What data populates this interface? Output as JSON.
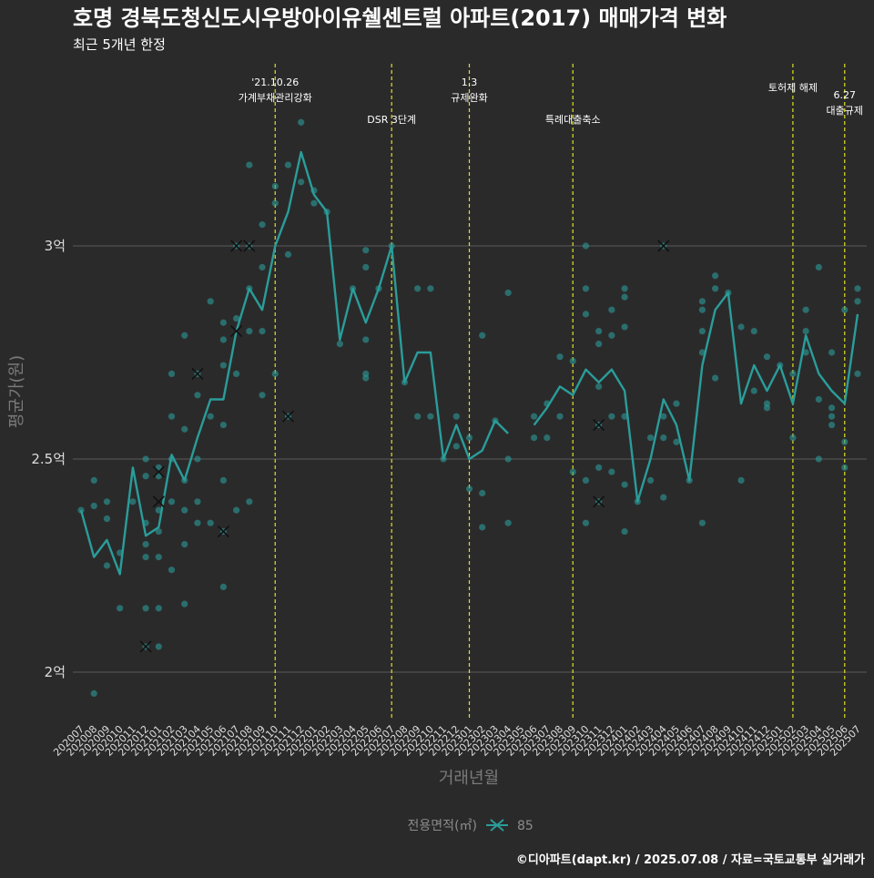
{
  "colors": {
    "background": "#2b2a2b",
    "series": "#2a9d9a",
    "point": "#2a9d9a",
    "event_line": "#e0e020",
    "grid": "#5a5a5a"
  },
  "chart_data": {
    "type": "line",
    "title": "호명 경북도청신도시우방아이유쉘센트럴 아파트(2017) 매매가격 변화",
    "subtitle": "최근 5개년 한정",
    "xlabel": "거래년월",
    "ylabel": "평균가(원)",
    "caption": "©디아파트(dapt.kr) / 2025.07.08 / 자료=국토교통부 실거래가",
    "legend": {
      "title": "전용면적(㎡)",
      "entries": [
        "85"
      ],
      "position": "bottom"
    },
    "grid": true,
    "y_unit": "억원",
    "ylim": [
      1.9,
      3.55
    ],
    "y_ticks": [
      2,
      2.5,
      3
    ],
    "y_tick_labels": [
      "2억",
      "2.5억",
      "3억"
    ],
    "categories": [
      "202007",
      "202008",
      "202009",
      "202010",
      "202011",
      "202012",
      "202101",
      "202102",
      "202103",
      "202104",
      "202105",
      "202106",
      "202107",
      "202108",
      "202109",
      "202110",
      "202111",
      "202112",
      "202201",
      "202202",
      "202203",
      "202204",
      "202205",
      "202206",
      "202207",
      "202208",
      "202209",
      "202210",
      "202211",
      "202212",
      "202301",
      "202302",
      "202303",
      "202304",
      "202305",
      "202306",
      "202307",
      "202308",
      "202309",
      "202310",
      "202311",
      "202312",
      "202401",
      "202402",
      "202403",
      "202404",
      "202405",
      "202406",
      "202407",
      "202408",
      "202409",
      "202410",
      "202411",
      "202412",
      "202501",
      "202502",
      "202503",
      "202504",
      "202505",
      "202506",
      "202507"
    ],
    "series": [
      {
        "name": "85",
        "values": [
          2.38,
          2.27,
          2.31,
          2.23,
          2.48,
          2.32,
          2.34,
          2.51,
          2.45,
          2.55,
          2.64,
          2.64,
          2.8,
          2.9,
          2.85,
          3.0,
          3.08,
          3.22,
          3.12,
          3.08,
          2.78,
          2.9,
          2.82,
          2.9,
          3.0,
          2.68,
          2.75,
          2.75,
          2.5,
          2.58,
          2.5,
          2.52,
          2.59,
          2.56,
          null,
          2.58,
          2.62,
          2.67,
          2.65,
          2.71,
          2.68,
          2.71,
          2.66,
          2.4,
          2.5,
          2.64,
          2.58,
          2.45,
          2.72,
          2.85,
          2.89,
          2.63,
          2.72,
          2.66,
          2.72,
          2.63,
          2.79,
          2.7,
          2.66,
          2.63,
          2.84
        ]
      }
    ],
    "transactions": [
      [
        0,
        2.38
      ],
      [
        1,
        2.45
      ],
      [
        1,
        2.39
      ],
      [
        1,
        1.95
      ],
      [
        2,
        2.4
      ],
      [
        2,
        2.36
      ],
      [
        2,
        2.25
      ],
      [
        3,
        2.28
      ],
      [
        3,
        2.15
      ],
      [
        4,
        2.4
      ],
      [
        5,
        2.5
      ],
      [
        5,
        2.46
      ],
      [
        5,
        2.35
      ],
      [
        5,
        2.3
      ],
      [
        5,
        2.27
      ],
      [
        5,
        2.15
      ],
      [
        5,
        2.06
      ],
      [
        6,
        2.48
      ],
      [
        6,
        2.46
      ],
      [
        6,
        2.38
      ],
      [
        6,
        2.33
      ],
      [
        6,
        2.27
      ],
      [
        6,
        2.15
      ],
      [
        6,
        2.06
      ],
      [
        7,
        2.7
      ],
      [
        7,
        2.6
      ],
      [
        7,
        2.5
      ],
      [
        7,
        2.4
      ],
      [
        7,
        2.24
      ],
      [
        8,
        2.79
      ],
      [
        8,
        2.57
      ],
      [
        8,
        2.45
      ],
      [
        8,
        2.38
      ],
      [
        8,
        2.3
      ],
      [
        8,
        2.16
      ],
      [
        9,
        2.7
      ],
      [
        9,
        2.65
      ],
      [
        9,
        2.5
      ],
      [
        9,
        2.4
      ],
      [
        9,
        2.35
      ],
      [
        10,
        2.87
      ],
      [
        10,
        2.6
      ],
      [
        10,
        2.35
      ],
      [
        11,
        2.82
      ],
      [
        11,
        2.78
      ],
      [
        11,
        2.72
      ],
      [
        11,
        2.58
      ],
      [
        11,
        2.45
      ],
      [
        11,
        2.33
      ],
      [
        11,
        2.2
      ],
      [
        12,
        3.0
      ],
      [
        12,
        2.83
      ],
      [
        12,
        2.7
      ],
      [
        12,
        2.38
      ],
      [
        13,
        3.19
      ],
      [
        13,
        3.0
      ],
      [
        13,
        2.9
      ],
      [
        13,
        2.8
      ],
      [
        13,
        2.4
      ],
      [
        14,
        3.05
      ],
      [
        14,
        2.95
      ],
      [
        14,
        2.8
      ],
      [
        14,
        2.65
      ],
      [
        15,
        3.14
      ],
      [
        15,
        3.1
      ],
      [
        15,
        2.7
      ],
      [
        16,
        3.19
      ],
      [
        16,
        2.98
      ],
      [
        16,
        2.6
      ],
      [
        17,
        3.29
      ],
      [
        17,
        3.15
      ],
      [
        18,
        3.13
      ],
      [
        18,
        3.1
      ],
      [
        19,
        3.08
      ],
      [
        20,
        2.77
      ],
      [
        21,
        2.9
      ],
      [
        22,
        2.99
      ],
      [
        22,
        2.95
      ],
      [
        22,
        2.78
      ],
      [
        22,
        2.7
      ],
      [
        22,
        2.69
      ],
      [
        23,
        2.9
      ],
      [
        24,
        3.0
      ],
      [
        25,
        2.68
      ],
      [
        26,
        2.9
      ],
      [
        26,
        2.6
      ],
      [
        27,
        2.9
      ],
      [
        27,
        2.6
      ],
      [
        28,
        2.5
      ],
      [
        29,
        2.6
      ],
      [
        29,
        2.53
      ],
      [
        30,
        2.55
      ],
      [
        30,
        2.43
      ],
      [
        31,
        2.79
      ],
      [
        31,
        2.42
      ],
      [
        31,
        2.34
      ],
      [
        32,
        2.59
      ],
      [
        33,
        2.89
      ],
      [
        33,
        2.5
      ],
      [
        33,
        2.35
      ],
      [
        35,
        2.6
      ],
      [
        35,
        2.55
      ],
      [
        36,
        2.63
      ],
      [
        36,
        2.55
      ],
      [
        37,
        2.74
      ],
      [
        37,
        2.6
      ],
      [
        38,
        2.73
      ],
      [
        38,
        2.47
      ],
      [
        39,
        3.0
      ],
      [
        39,
        2.9
      ],
      [
        39,
        2.84
      ],
      [
        39,
        2.45
      ],
      [
        39,
        2.35
      ],
      [
        40,
        2.8
      ],
      [
        40,
        2.77
      ],
      [
        40,
        2.67
      ],
      [
        40,
        2.58
      ],
      [
        40,
        2.48
      ],
      [
        40,
        2.4
      ],
      [
        41,
        2.85
      ],
      [
        41,
        2.79
      ],
      [
        41,
        2.6
      ],
      [
        41,
        2.47
      ],
      [
        42,
        2.9
      ],
      [
        42,
        2.88
      ],
      [
        42,
        2.81
      ],
      [
        42,
        2.6
      ],
      [
        42,
        2.44
      ],
      [
        42,
        2.33
      ],
      [
        43,
        2.4
      ],
      [
        44,
        2.55
      ],
      [
        44,
        2.45
      ],
      [
        45,
        3.0
      ],
      [
        45,
        2.6
      ],
      [
        45,
        2.55
      ],
      [
        45,
        2.41
      ],
      [
        46,
        2.63
      ],
      [
        46,
        2.54
      ],
      [
        47,
        2.45
      ],
      [
        48,
        2.87
      ],
      [
        48,
        2.85
      ],
      [
        48,
        2.8
      ],
      [
        48,
        2.75
      ],
      [
        48,
        2.35
      ],
      [
        49,
        2.93
      ],
      [
        49,
        2.9
      ],
      [
        49,
        2.69
      ],
      [
        50,
        2.89
      ],
      [
        51,
        2.81
      ],
      [
        51,
        2.45
      ],
      [
        52,
        2.8
      ],
      [
        52,
        2.66
      ],
      [
        53,
        2.74
      ],
      [
        53,
        2.63
      ],
      [
        53,
        2.62
      ],
      [
        54,
        2.72
      ],
      [
        55,
        2.7
      ],
      [
        55,
        2.55
      ],
      [
        56,
        2.85
      ],
      [
        56,
        2.8
      ],
      [
        56,
        2.75
      ],
      [
        57,
        2.95
      ],
      [
        57,
        2.64
      ],
      [
        57,
        2.5
      ],
      [
        58,
        2.75
      ],
      [
        58,
        2.62
      ],
      [
        58,
        2.6
      ],
      [
        58,
        2.58
      ],
      [
        59,
        2.85
      ],
      [
        59,
        2.54
      ],
      [
        59,
        2.48
      ],
      [
        60,
        2.9
      ],
      [
        60,
        2.87
      ],
      [
        60,
        2.7
      ]
    ],
    "cross_markers": [
      [
        5,
        2.06
      ],
      [
        6,
        2.47
      ],
      [
        6,
        2.4
      ],
      [
        9,
        2.7
      ],
      [
        11,
        2.33
      ],
      [
        12,
        3.0
      ],
      [
        12,
        2.8
      ],
      [
        13,
        3.0
      ],
      [
        16,
        2.6
      ],
      [
        40,
        2.58
      ],
      [
        40,
        2.4
      ],
      [
        45,
        3.0
      ]
    ],
    "events": [
      {
        "date": "202110",
        "lines": [
          "'21.10.26",
          "가계부채관리강화"
        ],
        "tier": 1
      },
      {
        "date": "202207",
        "lines": [
          "DSR 3단계"
        ],
        "tier": 2
      },
      {
        "date": "202301",
        "lines": [
          "1.3",
          "규제완화"
        ],
        "tier": 1
      },
      {
        "date": "202309",
        "lines": [
          "특례대출축소"
        ],
        "tier": 2
      },
      {
        "date": "202502",
        "lines": [
          "토허제 해제"
        ],
        "tier": 1
      },
      {
        "date": "202506",
        "lines": [
          "6.27",
          "대출규제"
        ],
        "tier": 3
      }
    ]
  }
}
